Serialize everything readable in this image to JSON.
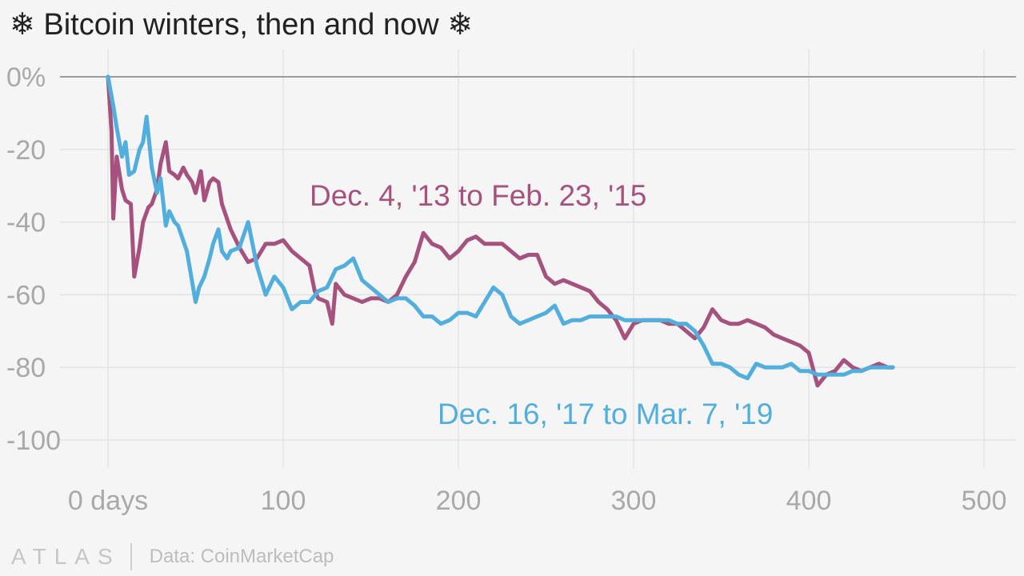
{
  "title": "❄ Bitcoin winters, then and now ❄",
  "footer": {
    "logo": "ATLAS",
    "source": "Data: CoinMarketCap"
  },
  "chart_data": {
    "type": "line",
    "title": "❄ Bitcoin winters, then and now ❄",
    "xlabel": "",
    "ylabel": "",
    "xlim": [
      0,
      500
    ],
    "ylim": [
      -100,
      0
    ],
    "x_ticks": [
      0,
      100,
      200,
      300,
      400,
      500
    ],
    "x_tick_labels": [
      "0 days",
      "100",
      "200",
      "300",
      "400",
      "500"
    ],
    "y_ticks": [
      0,
      -20,
      -40,
      -60,
      -80,
      -100
    ],
    "y_tick_labels": [
      "0%",
      "-20",
      "-40",
      "-60",
      "-80",
      "-100"
    ],
    "grid": true,
    "legend": "none (series labeled inline)",
    "series": [
      {
        "name": "Dec. 4, '13 to Feb. 23, '15",
        "color": "#a5527f",
        "x": [
          0,
          2,
          3,
          5,
          8,
          10,
          13,
          15,
          18,
          20,
          23,
          25,
          28,
          30,
          33,
          35,
          38,
          40,
          43,
          45,
          48,
          50,
          53,
          55,
          58,
          60,
          63,
          65,
          70,
          75,
          80,
          85,
          90,
          95,
          100,
          105,
          110,
          115,
          118,
          120,
          125,
          128,
          130,
          135,
          140,
          145,
          150,
          155,
          160,
          165,
          170,
          175,
          180,
          185,
          190,
          195,
          200,
          205,
          210,
          215,
          220,
          225,
          230,
          235,
          240,
          245,
          250,
          255,
          260,
          265,
          270,
          275,
          280,
          285,
          290,
          295,
          300,
          305,
          310,
          315,
          320,
          325,
          330,
          335,
          340,
          345,
          350,
          355,
          360,
          365,
          370,
          375,
          380,
          385,
          390,
          395,
          400,
          405,
          410,
          415,
          420,
          425,
          430,
          435,
          440,
          445,
          448
        ],
        "y": [
          0,
          -15,
          -39,
          -22,
          -31,
          -34,
          -35,
          -55,
          -47,
          -40,
          -36,
          -35,
          -31,
          -24,
          -18,
          -26,
          -27,
          -28,
          -25,
          -27,
          -29,
          -32,
          -26,
          -34,
          -29,
          -28,
          -29,
          -35,
          -42,
          -47,
          -51,
          -50,
          -46,
          -46,
          -45,
          -48,
          -50,
          -52,
          -59,
          -61,
          -62,
          -68,
          -57,
          -60,
          -61,
          -62,
          -61,
          -61,
          -62,
          -60,
          -55,
          -51,
          -43,
          -46,
          -47,
          -50,
          -48,
          -45,
          -44,
          -46,
          -46,
          -46,
          -48,
          -50,
          -49,
          -49,
          -55,
          -57,
          -56,
          -57,
          -58,
          -59,
          -62,
          -64,
          -67,
          -72,
          -68,
          -67,
          -67,
          -67,
          -68,
          -68,
          -70,
          -72,
          -69,
          -64,
          -67,
          -68,
          -68,
          -67,
          -68,
          -69,
          -71,
          -72,
          -73,
          -74,
          -76,
          -85,
          -82,
          -81,
          -78,
          -80,
          -81,
          -80,
          -79,
          -80,
          -80
        ]
      },
      {
        "name": "Dec. 16, '17 to Mar. 7, '19",
        "color": "#51aedd",
        "x": [
          0,
          3,
          5,
          8,
          10,
          12,
          15,
          18,
          20,
          22,
          25,
          28,
          30,
          33,
          35,
          38,
          40,
          45,
          50,
          52,
          55,
          58,
          60,
          63,
          65,
          68,
          70,
          75,
          80,
          85,
          90,
          95,
          100,
          105,
          110,
          115,
          120,
          125,
          130,
          135,
          140,
          145,
          150,
          155,
          160,
          165,
          170,
          175,
          180,
          185,
          190,
          195,
          200,
          205,
          210,
          215,
          220,
          225,
          230,
          235,
          240,
          245,
          250,
          255,
          260,
          265,
          270,
          275,
          280,
          285,
          290,
          295,
          300,
          305,
          310,
          315,
          320,
          325,
          330,
          335,
          340,
          345,
          350,
          355,
          360,
          365,
          370,
          375,
          380,
          385,
          390,
          395,
          400,
          405,
          410,
          415,
          420,
          425,
          430,
          435,
          440,
          445,
          448
        ],
        "y": [
          0,
          -8,
          -14,
          -22,
          -18,
          -27,
          -26,
          -20,
          -18,
          -11,
          -25,
          -32,
          -28,
          -41,
          -37,
          -40,
          -41,
          -48,
          -62,
          -58,
          -55,
          -50,
          -46,
          -42,
          -48,
          -50,
          -48,
          -47,
          -40,
          -52,
          -60,
          -55,
          -58,
          -64,
          -62,
          -62,
          -59,
          -58,
          -53,
          -52,
          -50,
          -56,
          -58,
          -60,
          -62,
          -61,
          -61,
          -63,
          -66,
          -66,
          -68,
          -67,
          -65,
          -65,
          -66,
          -62,
          -58,
          -60,
          -66,
          -68,
          -67,
          -66,
          -65,
          -63,
          -68,
          -67,
          -67,
          -66,
          -66,
          -66,
          -66,
          -67,
          -67,
          -67,
          -67,
          -67,
          -67,
          -68,
          -68,
          -70,
          -74,
          -79,
          -79,
          -80,
          -82,
          -83,
          -79,
          -80,
          -80,
          -80,
          -79,
          -81,
          -81,
          -82,
          -82,
          -82,
          -82,
          -81,
          -81,
          -80,
          -80,
          -80,
          -80
        ]
      }
    ],
    "annotations": [
      {
        "text": "Dec. 4, '13 to Feb. 23, '15",
        "series": 0
      },
      {
        "text": "Dec. 16, '17 to Mar. 7, '19",
        "series": 1
      }
    ]
  }
}
